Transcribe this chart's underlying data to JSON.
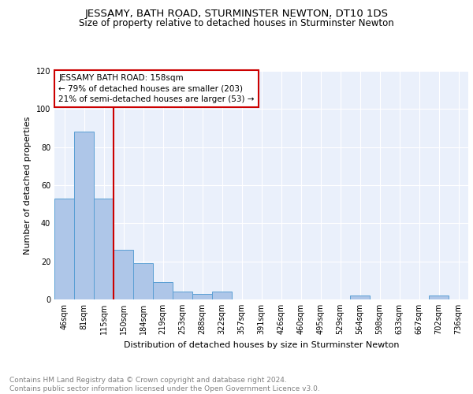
{
  "title": "JESSAMY, BATH ROAD, STURMINSTER NEWTON, DT10 1DS",
  "subtitle": "Size of property relative to detached houses in Sturminster Newton",
  "xlabel": "Distribution of detached houses by size in Sturminster Newton",
  "ylabel": "Number of detached properties",
  "bin_labels": [
    "46sqm",
    "81sqm",
    "115sqm",
    "150sqm",
    "184sqm",
    "219sqm",
    "253sqm",
    "288sqm",
    "322sqm",
    "357sqm",
    "391sqm",
    "426sqm",
    "460sqm",
    "495sqm",
    "529sqm",
    "564sqm",
    "598sqm",
    "633sqm",
    "667sqm",
    "702sqm",
    "736sqm"
  ],
  "bar_values": [
    53,
    88,
    53,
    26,
    19,
    9,
    4,
    3,
    4,
    0,
    0,
    0,
    0,
    0,
    0,
    2,
    0,
    0,
    0,
    2,
    0
  ],
  "bar_color": "#aec6e8",
  "bar_edge_color": "#5a9fd4",
  "vline_color": "#cc0000",
  "annotation_box_text": "JESSAMY BATH ROAD: 158sqm\n← 79% of detached houses are smaller (203)\n21% of semi-detached houses are larger (53) →",
  "annotation_box_color": "#cc0000",
  "annotation_box_facecolor": "white",
  "ylim": [
    0,
    120
  ],
  "yticks": [
    0,
    20,
    40,
    60,
    80,
    100,
    120
  ],
  "footer_text": "Contains HM Land Registry data © Crown copyright and database right 2024.\nContains public sector information licensed under the Open Government Licence v3.0.",
  "bg_color": "#eaf0fb",
  "title_fontsize": 9.5,
  "subtitle_fontsize": 8.5,
  "axis_label_fontsize": 8,
  "tick_fontsize": 7,
  "annot_fontsize": 7.5,
  "footer_fontsize": 6.5
}
